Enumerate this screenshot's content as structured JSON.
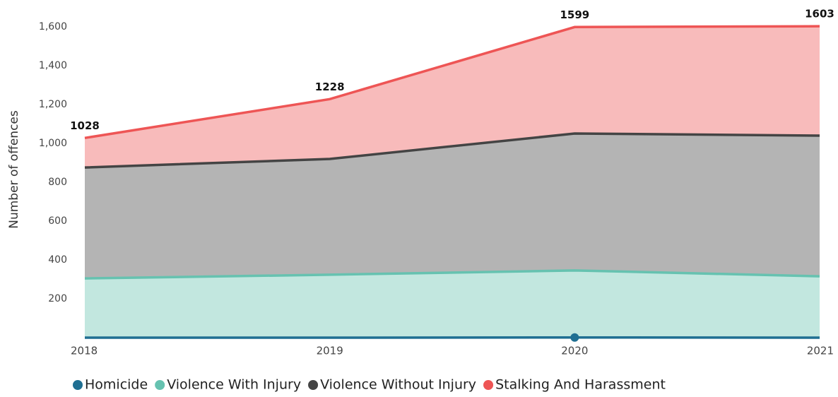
{
  "chart_data": {
    "type": "stacked-area",
    "y_label": "Number of offences",
    "x": [
      2018,
      2019,
      2020,
      2021
    ],
    "xlim": [
      2018,
      2021
    ],
    "xticks": [
      2018,
      2019,
      2020,
      2021
    ],
    "ylim": [
      0,
      1620
    ],
    "yticks": [
      200,
      400,
      600,
      800,
      {
        "value": 1000,
        "label": "1,000"
      },
      {
        "value": 1200,
        "label": "1,200"
      },
      {
        "value": 1400,
        "label": "1,400"
      },
      {
        "value": 1600,
        "label": "1,600"
      }
    ],
    "series": [
      {
        "name": "Homicide",
        "color": "#1f6f92",
        "values": [
          0,
          0,
          1,
          0
        ]
      },
      {
        "name": "Violence With Injury",
        "color": "#66c2b0",
        "values": [
          305,
          324,
          345,
          316
        ]
      },
      {
        "name": "Violence Without Injury",
        "color": "#444444",
        "values": [
          571,
          596,
          705,
          724
        ]
      },
      {
        "name": "Stalking And Harassment",
        "color": "#ee5555",
        "values": [
          152,
          308,
          548,
          563
        ]
      }
    ],
    "totals": [
      1028,
      1228,
      1599,
      1603
    ],
    "legend": "bottom"
  }
}
